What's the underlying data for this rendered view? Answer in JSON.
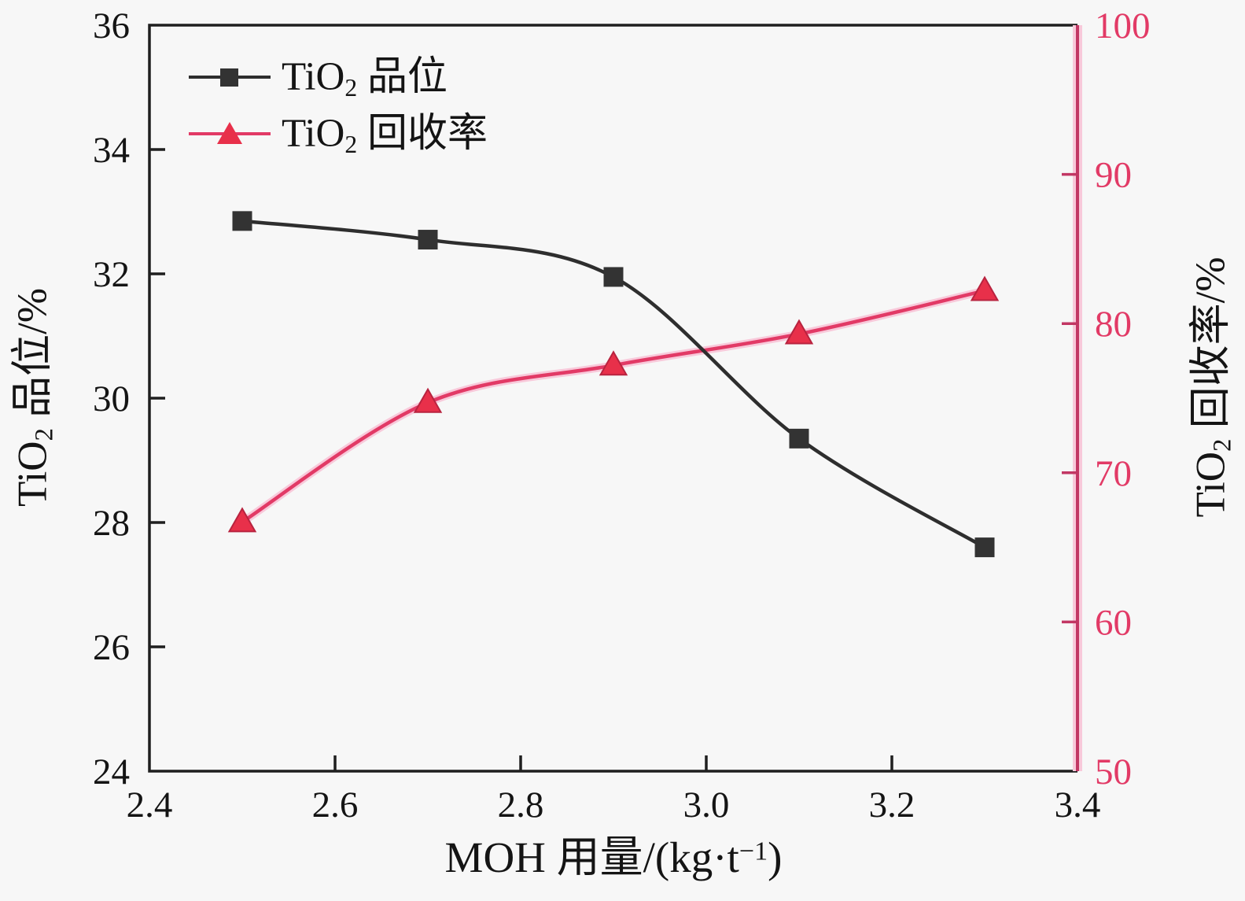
{
  "figure": {
    "background": "#f7f7f7",
    "frame_color": "#1f1f1f",
    "accent_pink": "#e23a66",
    "right_axis_line_color": "#c23764",
    "right_axis_halo_color": "#f8c9da"
  },
  "legend": {
    "items": [
      {
        "label_prefix": "TiO",
        "label_sub": "2",
        "label_rest": " 品位",
        "marker": "square",
        "color": "#2e2e2e",
        "marker_color": "#333333"
      },
      {
        "label_prefix": "TiO",
        "label_sub": "2",
        "label_rest": " 回收率",
        "marker": "triangle",
        "color": "#e23a66",
        "marker_color": "#e8304a"
      }
    ]
  },
  "axis_titles": {
    "x": {
      "prefix": "MOH 用量/(kg·t",
      "sup": "−1",
      "suffix": ")"
    },
    "y_left": {
      "prefix": "TiO",
      "sub": "2",
      "rest": " 品位/%"
    },
    "y_right": {
      "prefix": "TiO",
      "sub": "2",
      "rest": " 回收率/%"
    }
  },
  "chart_data": {
    "type": "line",
    "title": "",
    "x": [
      2.5,
      2.7,
      2.9,
      3.1,
      3.3
    ],
    "series": [
      {
        "name": "TiO2 品位",
        "axis": "left",
        "marker": "square",
        "line_color": "#2e2e2e",
        "marker_color": "#333333",
        "values": [
          32.85,
          32.55,
          31.95,
          29.35,
          27.6
        ]
      },
      {
        "name": "TiO2 回收率",
        "axis": "right",
        "marker": "triangle",
        "line_color": "#e23a66",
        "marker_color": "#e8304a",
        "marker_edge_color": "#b8233f",
        "values": [
          66.7,
          74.7,
          77.2,
          79.3,
          82.2
        ]
      }
    ],
    "x_axis": {
      "label": "MOH 用量/(kg·t−1)",
      "min": 2.4,
      "max": 3.4,
      "ticks": [
        2.4,
        2.6,
        2.8,
        3.0,
        3.2,
        3.4
      ],
      "tick_labels": [
        "2.4",
        "2.6",
        "2.8",
        "3.0",
        "3.2",
        "3.4"
      ]
    },
    "y_left": {
      "label": "TiO2 品位/%",
      "min": 24,
      "max": 36,
      "ticks": [
        24,
        26,
        28,
        30,
        32,
        34,
        36
      ],
      "tick_labels": [
        "24",
        "26",
        "28",
        "30",
        "32",
        "34",
        "36"
      ],
      "tick_color": "#141414"
    },
    "y_right": {
      "label": "TiO2 回收率/%",
      "min": 50,
      "max": 100,
      "ticks": [
        50,
        60,
        70,
        80,
        90,
        100
      ],
      "tick_labels": [
        "50",
        "60",
        "70",
        "80",
        "90",
        "100"
      ],
      "tick_color": "#e23a66"
    },
    "legend_position": "upper-left-inside",
    "grid": false
  }
}
